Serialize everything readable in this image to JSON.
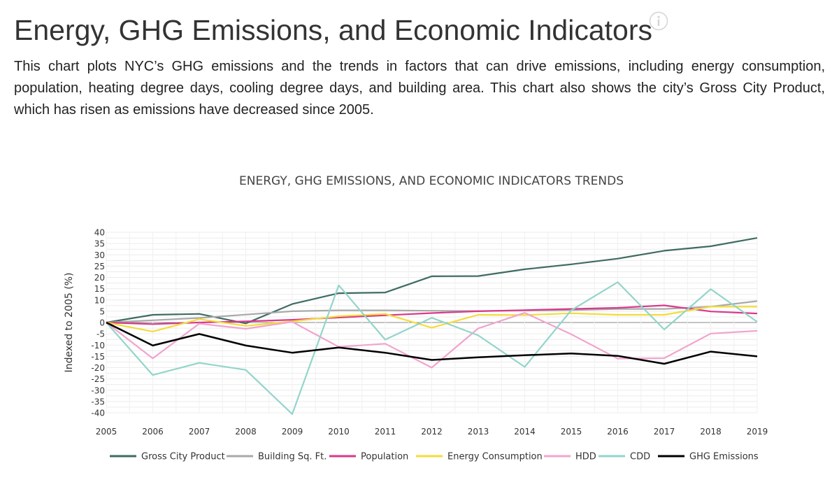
{
  "header": {
    "title": "Energy, GHG Emissions, and Economic Indicators",
    "description": "This chart plots NYC’s GHG emissions and the trends in factors that can drive emissions, including energy consumption, population, heating degree days, cooling degree days, and building area. This chart also shows the city’s Gross City Product, which has risen as emissions have decreased since 2005.",
    "info_icon": "info-circle-icon"
  },
  "chart_data": {
    "type": "line",
    "title": "ENERGY, GHG EMISSIONS, AND ECONOMIC INDICATORS TRENDS",
    "xlabel": "",
    "ylabel": "Indexed to 2005 (%)",
    "ylim": [
      -40,
      40
    ],
    "yticks": [
      40,
      35,
      30,
      25,
      20,
      15,
      10,
      5,
      0,
      -5,
      -10,
      -15,
      -20,
      -25,
      -30,
      -35,
      -40
    ],
    "grid": true,
    "legend_position": "bottom",
    "x": [
      "2005",
      "2006",
      "2007",
      "2008",
      "2009",
      "2010",
      "2011",
      "2012",
      "2013",
      "2014",
      "2015",
      "2016",
      "2017",
      "2018",
      "2019"
    ],
    "series": [
      {
        "name": "Gross City Product",
        "color": "#3f6b63",
        "values": [
          0,
          3.4,
          3.8,
          -0.4,
          8.2,
          13,
          13.3,
          20.5,
          20.6,
          23.6,
          25.8,
          28.3,
          31.8,
          33.8,
          37.5
        ]
      },
      {
        "name": "Building Sq. Ft.",
        "color": "#a9a9a9",
        "values": [
          0,
          1,
          2,
          3.5,
          5,
          5.4,
          5.4,
          5.2,
          5.1,
          5.3,
          5.5,
          6,
          6,
          7,
          9.5
        ]
      },
      {
        "name": "Population",
        "color": "#d9398a",
        "values": [
          0,
          -0.7,
          0,
          0.5,
          1.2,
          2.2,
          3.2,
          4.2,
          5,
          5.5,
          6,
          6.5,
          7.6,
          4.9,
          4
        ]
      },
      {
        "name": "Energy Consumption",
        "color": "#f3dc3b",
        "values": [
          0,
          -4,
          1.5,
          -1.5,
          0.5,
          2.8,
          3.8,
          -2.3,
          3.4,
          3.3,
          4.1,
          3.4,
          3.4,
          7,
          7
        ]
      },
      {
        "name": "HDD",
        "color": "#f1a4cd",
        "values": [
          0,
          -15.9,
          -0.5,
          -2.8,
          0.3,
          -10.8,
          -9.4,
          -20,
          -2.6,
          4.3,
          -5.2,
          -16,
          -15.8,
          -4.9,
          -3.7
        ]
      },
      {
        "name": "CDD",
        "color": "#93d5ca",
        "values": [
          0,
          -23.3,
          -17.9,
          -21,
          -40.6,
          16.5,
          -7.6,
          2.1,
          -5.7,
          -19.7,
          5.4,
          17.9,
          -3.1,
          14.8,
          0.3
        ]
      },
      {
        "name": "GHG Emissions",
        "color": "#000000",
        "values": [
          0,
          -10.2,
          -5.1,
          -10.2,
          -13.4,
          -11.1,
          -13.4,
          -16.6,
          -15.4,
          -14.5,
          -13.7,
          -14.8,
          -18.3,
          -12.9,
          -15
        ]
      }
    ]
  }
}
